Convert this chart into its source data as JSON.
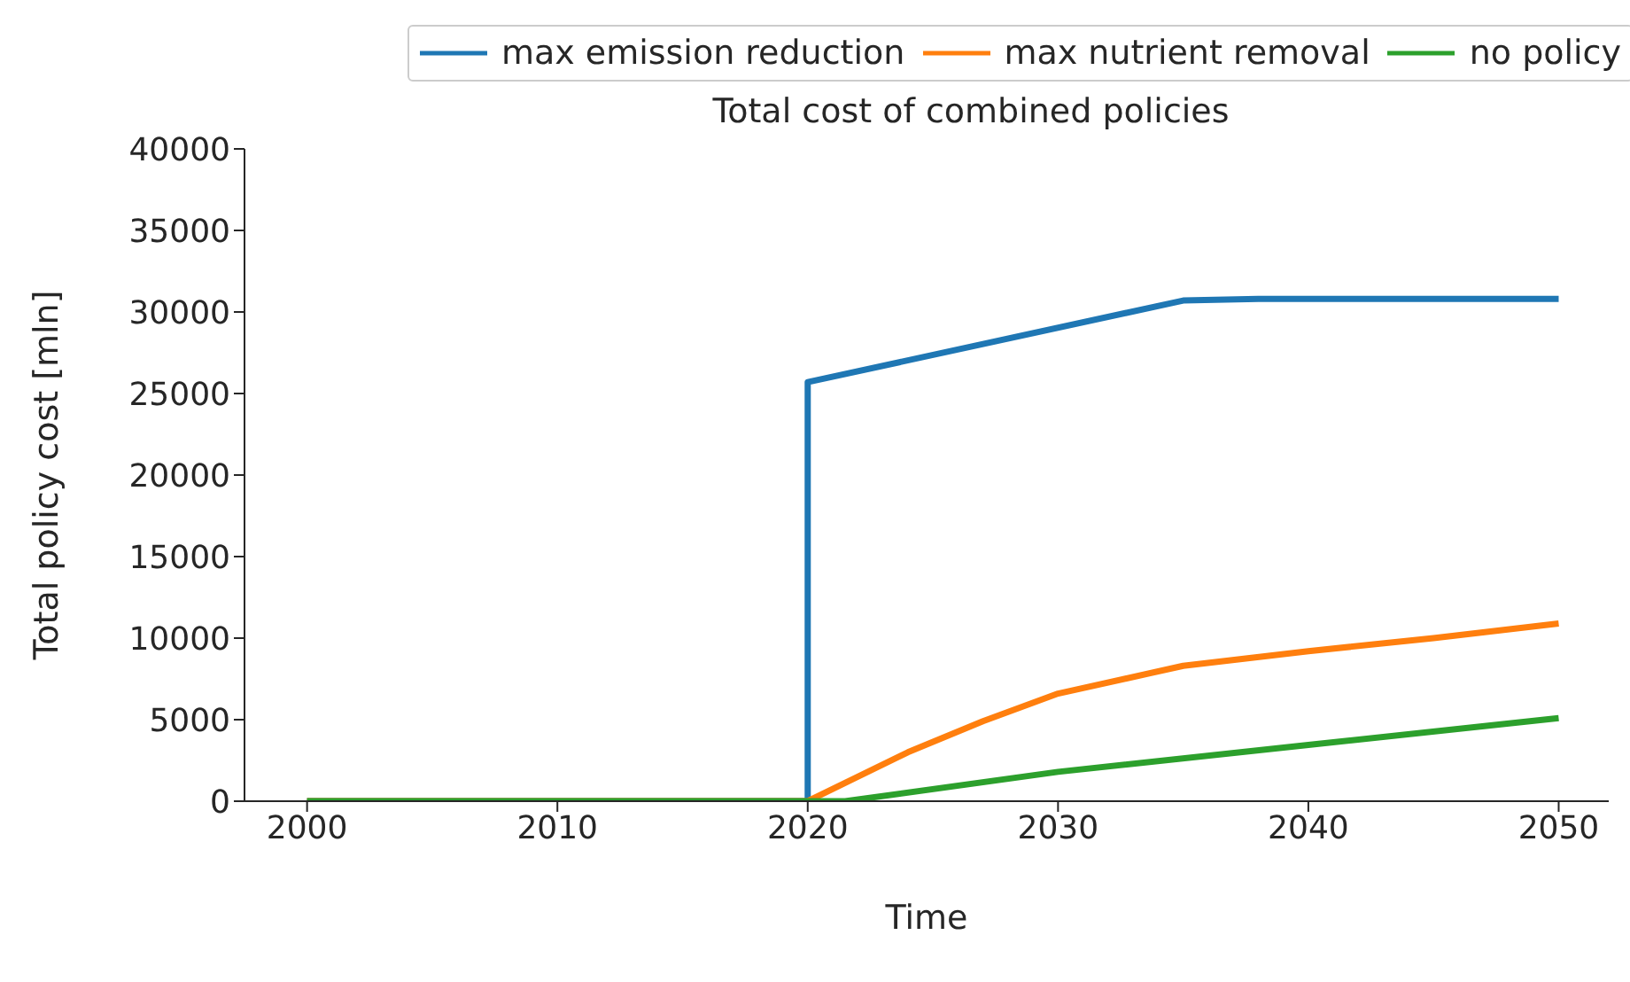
{
  "chart_data": {
    "type": "line",
    "title": "Total cost of combined policies",
    "xlabel": "Time",
    "ylabel": "Total policy cost [mln]",
    "xlim": [
      1997.5,
      2052
    ],
    "xticks": [
      2000,
      2010,
      2020,
      2030,
      2040,
      2050
    ],
    "ylim": [
      0,
      40000
    ],
    "yticks": [
      0,
      5000,
      10000,
      15000,
      20000,
      25000,
      30000,
      35000,
      40000
    ],
    "grid": false,
    "legend": "top",
    "marker": "none",
    "line_style": "solid",
    "series": [
      {
        "name": "max emission reduction",
        "color": "#1f77b4",
        "x": [
          2000,
          2020,
          2020,
          2035,
          2038,
          2050
        ],
        "values": [
          0,
          0,
          25700,
          30700,
          30800,
          30800
        ]
      },
      {
        "name": "max nutrient removal",
        "color": "#ff7f0e",
        "x": [
          2000,
          2020,
          2022,
          2024,
          2027,
          2030,
          2035,
          2040,
          2045,
          2050
        ],
        "values": [
          0,
          0,
          1500,
          3000,
          4900,
          6600,
          8300,
          9200,
          10000,
          10900
        ]
      },
      {
        "name": "no policy",
        "color": "#2ca02c",
        "x": [
          2000,
          2021.5,
          2030,
          2040,
          2050
        ],
        "values": [
          0,
          0,
          1800,
          3450,
          5100
        ]
      }
    ]
  }
}
